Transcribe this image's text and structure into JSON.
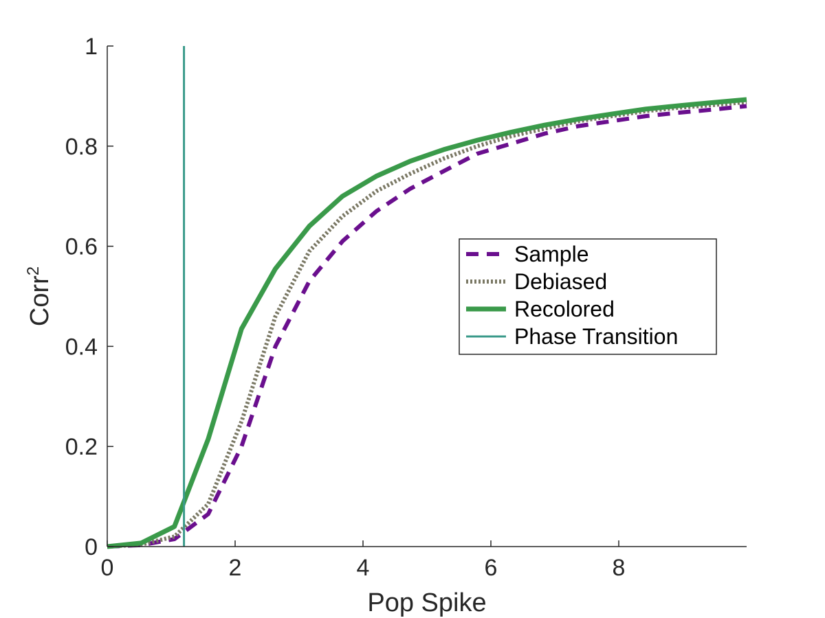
{
  "chart_data": {
    "type": "line",
    "title": "",
    "xlabel": "Pop Spike",
    "ylabel_base": "Corr",
    "ylabel_superscript": "2",
    "xlim": [
      0,
      10
    ],
    "ylim": [
      0,
      1
    ],
    "xticks": [
      0,
      2,
      4,
      6,
      8
    ],
    "yticks": [
      0,
      0.2,
      0.4,
      0.6,
      0.8,
      1
    ],
    "xtick_labels": [
      "0",
      "2",
      "4",
      "6",
      "8"
    ],
    "ytick_labels": [
      "0",
      "0.2",
      "0.4",
      "0.6",
      "0.8",
      "1"
    ],
    "grid": false,
    "legend_position": "center-right",
    "series": [
      {
        "name": "Sample",
        "style": "dashed",
        "color": "#6a0f8e",
        "x": [
          0,
          0.53,
          1.05,
          1.58,
          2.1,
          2.63,
          3.16,
          3.68,
          4.21,
          4.74,
          5.26,
          5.79,
          6.32,
          6.84,
          7.37,
          7.89,
          8.42,
          8.95,
          9.47,
          10
        ],
        "y": [
          0.0,
          0.003,
          0.015,
          0.065,
          0.2,
          0.4,
          0.53,
          0.61,
          0.67,
          0.715,
          0.75,
          0.785,
          0.805,
          0.825,
          0.84,
          0.85,
          0.86,
          0.867,
          0.873,
          0.88
        ]
      },
      {
        "name": "Debiased",
        "style": "dotted",
        "color": "#7a7864",
        "x": [
          0,
          0.53,
          1.05,
          1.58,
          2.1,
          2.63,
          3.16,
          3.68,
          4.21,
          4.74,
          5.26,
          5.79,
          6.32,
          6.84,
          7.37,
          7.89,
          8.42,
          8.95,
          9.47,
          10
        ],
        "y": [
          0.0,
          0.004,
          0.02,
          0.085,
          0.25,
          0.46,
          0.59,
          0.66,
          0.71,
          0.745,
          0.775,
          0.8,
          0.82,
          0.835,
          0.85,
          0.86,
          0.87,
          0.877,
          0.882,
          0.888
        ]
      },
      {
        "name": "Recolored",
        "style": "solid-thick",
        "color": "#3a9a4a",
        "x": [
          0,
          0.53,
          1.05,
          1.58,
          2.1,
          2.63,
          3.16,
          3.68,
          4.21,
          4.74,
          5.26,
          5.79,
          6.32,
          6.84,
          7.37,
          7.89,
          8.42,
          8.95,
          9.47,
          10
        ],
        "y": [
          0.0,
          0.007,
          0.04,
          0.215,
          0.435,
          0.555,
          0.64,
          0.7,
          0.74,
          0.77,
          0.793,
          0.812,
          0.828,
          0.842,
          0.854,
          0.864,
          0.874,
          0.881,
          0.887,
          0.893
        ]
      }
    ],
    "vertical_line": {
      "name": "Phase Transition",
      "x": 1.2,
      "color": "#3a9a8a"
    }
  }
}
